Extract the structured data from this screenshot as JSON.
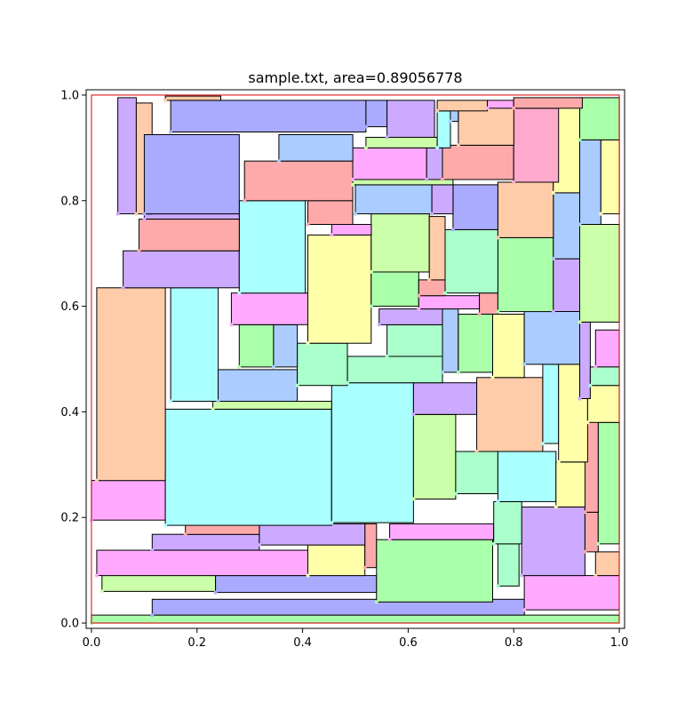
{
  "chart_data": {
    "type": "rectangle-packing",
    "title": "sample.txt, area=0.89056778",
    "xlabel": "",
    "ylabel": "",
    "xlim": [
      -0.01,
      1.01
    ],
    "ylim": [
      -0.01,
      1.01
    ],
    "xticks": [
      0.0,
      0.2,
      0.4,
      0.6,
      0.8,
      1.0
    ],
    "yticks": [
      0.0,
      0.2,
      0.4,
      0.6,
      0.8,
      1.0
    ],
    "xtick_labels": [
      "0.0",
      "0.2",
      "0.4",
      "0.6",
      "0.8",
      "1.0"
    ],
    "ytick_labels": [
      "0.0",
      "0.2",
      "0.4",
      "0.6",
      "0.8",
      "1.0"
    ],
    "container": {
      "x0": 0.0,
      "y0": 0.0,
      "x1": 1.0,
      "y1": 1.0,
      "color": "#dd0000"
    },
    "rectangles": [
      {
        "x0": 0.0,
        "y0": 0.0,
        "x1": 1.0,
        "y1": 0.015,
        "color": "#aaffaa"
      },
      {
        "x0": 0.115,
        "y0": 0.015,
        "x1": 0.82,
        "y1": 0.045,
        "color": "#aaaaff"
      },
      {
        "x0": 0.82,
        "y0": 0.025,
        "x1": 1.0,
        "y1": 0.09,
        "color": "#ffaaff"
      },
      {
        "x0": 0.02,
        "y0": 0.06,
        "x1": 0.235,
        "y1": 0.09,
        "color": "#ccffaa"
      },
      {
        "x0": 0.235,
        "y0": 0.058,
        "x1": 0.54,
        "y1": 0.09,
        "color": "#aaaaff"
      },
      {
        "x0": 0.01,
        "y0": 0.09,
        "x1": 0.41,
        "y1": 0.138,
        "color": "#ffaaff"
      },
      {
        "x0": 0.41,
        "y0": 0.09,
        "x1": 0.518,
        "y1": 0.148,
        "color": "#ffffaa"
      },
      {
        "x0": 0.518,
        "y0": 0.105,
        "x1": 0.54,
        "y1": 0.188,
        "color": "#ffaaaa"
      },
      {
        "x0": 0.54,
        "y0": 0.04,
        "x1": 0.76,
        "y1": 0.158,
        "color": "#aaffaa"
      },
      {
        "x0": 0.77,
        "y0": 0.07,
        "x1": 0.81,
        "y1": 0.15,
        "color": "#aaffcc"
      },
      {
        "x0": 0.815,
        "y0": 0.09,
        "x1": 0.935,
        "y1": 0.22,
        "color": "#ccaaff"
      },
      {
        "x0": 0.955,
        "y0": 0.09,
        "x1": 1.0,
        "y1": 0.135,
        "color": "#ffccaa"
      },
      {
        "x0": 0.115,
        "y0": 0.138,
        "x1": 0.318,
        "y1": 0.168,
        "color": "#ccaaff"
      },
      {
        "x0": 0.318,
        "y0": 0.148,
        "x1": 0.518,
        "y1": 0.188,
        "color": "#ccaaff"
      },
      {
        "x0": 0.178,
        "y0": 0.168,
        "x1": 0.318,
        "y1": 0.188,
        "color": "#ffaaaa"
      },
      {
        "x0": 0.565,
        "y0": 0.158,
        "x1": 0.762,
        "y1": 0.188,
        "color": "#ffaaff"
      },
      {
        "x0": 0.762,
        "y0": 0.15,
        "x1": 0.815,
        "y1": 0.23,
        "color": "#aaffcc"
      },
      {
        "x0": 0.935,
        "y0": 0.135,
        "x1": 0.96,
        "y1": 0.21,
        "color": "#ffaaaa"
      },
      {
        "x0": 0.96,
        "y0": 0.15,
        "x1": 1.0,
        "y1": 0.38,
        "color": "#aaffaa"
      },
      {
        "x0": 0.0,
        "y0": 0.195,
        "x1": 0.14,
        "y1": 0.27,
        "color": "#ffaaff"
      },
      {
        "x0": 0.14,
        "y0": 0.185,
        "x1": 0.455,
        "y1": 0.405,
        "color": "#aaffff"
      },
      {
        "x0": 0.455,
        "y0": 0.19,
        "x1": 0.61,
        "y1": 0.455,
        "color": "#aaffff"
      },
      {
        "x0": 0.61,
        "y0": 0.235,
        "x1": 0.69,
        "y1": 0.395,
        "color": "#ccffaa"
      },
      {
        "x0": 0.69,
        "y0": 0.245,
        "x1": 0.77,
        "y1": 0.325,
        "color": "#aaffcc"
      },
      {
        "x0": 0.77,
        "y0": 0.23,
        "x1": 0.88,
        "y1": 0.325,
        "color": "#aaffff"
      },
      {
        "x0": 0.88,
        "y0": 0.22,
        "x1": 0.935,
        "y1": 0.305,
        "color": "#ffffaa"
      },
      {
        "x0": 0.935,
        "y0": 0.21,
        "x1": 0.96,
        "y1": 0.385,
        "color": "#ffaaaa"
      },
      {
        "x0": 0.01,
        "y0": 0.27,
        "x1": 0.14,
        "y1": 0.635,
        "color": "#ffccaa"
      },
      {
        "x0": 0.61,
        "y0": 0.395,
        "x1": 0.73,
        "y1": 0.455,
        "color": "#ccaaff"
      },
      {
        "x0": 0.73,
        "y0": 0.325,
        "x1": 0.855,
        "y1": 0.465,
        "color": "#ffccaa"
      },
      {
        "x0": 0.855,
        "y0": 0.34,
        "x1": 0.885,
        "y1": 0.49,
        "color": "#aaffff"
      },
      {
        "x0": 0.885,
        "y0": 0.305,
        "x1": 0.94,
        "y1": 0.49,
        "color": "#ffffaa"
      },
      {
        "x0": 0.94,
        "y0": 0.38,
        "x1": 1.0,
        "y1": 0.45,
        "color": "#ffffaa"
      },
      {
        "x0": 0.23,
        "y0": 0.405,
        "x1": 0.455,
        "y1": 0.42,
        "color": "#ccffaa"
      },
      {
        "x0": 0.15,
        "y0": 0.42,
        "x1": 0.24,
        "y1": 0.635,
        "color": "#aaffff"
      },
      {
        "x0": 0.24,
        "y0": 0.42,
        "x1": 0.39,
        "y1": 0.48,
        "color": "#aaccff"
      },
      {
        "x0": 0.39,
        "y0": 0.45,
        "x1": 0.485,
        "y1": 0.53,
        "color": "#aaffcc"
      },
      {
        "x0": 0.485,
        "y0": 0.455,
        "x1": 0.665,
        "y1": 0.505,
        "color": "#aaffcc"
      },
      {
        "x0": 0.665,
        "y0": 0.475,
        "x1": 0.695,
        "y1": 0.595,
        "color": "#aaccff"
      },
      {
        "x0": 0.695,
        "y0": 0.475,
        "x1": 0.76,
        "y1": 0.585,
        "color": "#aaffaa"
      },
      {
        "x0": 0.76,
        "y0": 0.465,
        "x1": 0.82,
        "y1": 0.585,
        "color": "#ffffaa"
      },
      {
        "x0": 0.82,
        "y0": 0.49,
        "x1": 0.925,
        "y1": 0.59,
        "color": "#aaccff"
      },
      {
        "x0": 0.925,
        "y0": 0.425,
        "x1": 0.945,
        "y1": 0.57,
        "color": "#ccaaff"
      },
      {
        "x0": 0.955,
        "y0": 0.485,
        "x1": 1.0,
        "y1": 0.555,
        "color": "#ffaaff"
      },
      {
        "x0": 0.945,
        "y0": 0.45,
        "x1": 1.0,
        "y1": 0.485,
        "color": "#aaffcc"
      },
      {
        "x0": 0.28,
        "y0": 0.485,
        "x1": 0.345,
        "y1": 0.565,
        "color": "#aaffaa"
      },
      {
        "x0": 0.345,
        "y0": 0.485,
        "x1": 0.39,
        "y1": 0.565,
        "color": "#aaccff"
      },
      {
        "x0": 0.56,
        "y0": 0.505,
        "x1": 0.665,
        "y1": 0.565,
        "color": "#aaffcc"
      },
      {
        "x0": 0.265,
        "y0": 0.565,
        "x1": 0.41,
        "y1": 0.625,
        "color": "#ffaaff"
      },
      {
        "x0": 0.41,
        "y0": 0.53,
        "x1": 0.53,
        "y1": 0.735,
        "color": "#ffffaa"
      },
      {
        "x0": 0.545,
        "y0": 0.565,
        "x1": 0.665,
        "y1": 0.595,
        "color": "#ccaaff"
      },
      {
        "x0": 0.53,
        "y0": 0.6,
        "x1": 0.62,
        "y1": 0.665,
        "color": "#aaffaa"
      },
      {
        "x0": 0.62,
        "y0": 0.595,
        "x1": 0.735,
        "y1": 0.62,
        "color": "#ffaaff"
      },
      {
        "x0": 0.735,
        "y0": 0.585,
        "x1": 0.77,
        "y1": 0.625,
        "color": "#ffaaaa"
      },
      {
        "x0": 0.77,
        "y0": 0.59,
        "x1": 0.875,
        "y1": 0.73,
        "color": "#aaffaa"
      },
      {
        "x0": 0.875,
        "y0": 0.59,
        "x1": 0.925,
        "y1": 0.69,
        "color": "#ccaaff"
      },
      {
        "x0": 0.925,
        "y0": 0.57,
        "x1": 1.0,
        "y1": 0.755,
        "color": "#ccffaa"
      },
      {
        "x0": 0.06,
        "y0": 0.635,
        "x1": 0.28,
        "y1": 0.705,
        "color": "#ccaaff"
      },
      {
        "x0": 0.28,
        "y0": 0.625,
        "x1": 0.405,
        "y1": 0.8,
        "color": "#aaffff"
      },
      {
        "x0": 0.62,
        "y0": 0.62,
        "x1": 0.67,
        "y1": 0.65,
        "color": "#ffaaaa"
      },
      {
        "x0": 0.67,
        "y0": 0.625,
        "x1": 0.77,
        "y1": 0.745,
        "color": "#aaffcc"
      },
      {
        "x0": 0.53,
        "y0": 0.665,
        "x1": 0.64,
        "y1": 0.775,
        "color": "#ccffaa"
      },
      {
        "x0": 0.64,
        "y0": 0.65,
        "x1": 0.67,
        "y1": 0.77,
        "color": "#ffccaa"
      },
      {
        "x0": 0.09,
        "y0": 0.705,
        "x1": 0.28,
        "y1": 0.765,
        "color": "#ffaaaa"
      },
      {
        "x0": 0.455,
        "y0": 0.735,
        "x1": 0.53,
        "y1": 0.755,
        "color": "#ffaaff"
      },
      {
        "x0": 0.875,
        "y0": 0.69,
        "x1": 0.925,
        "y1": 0.815,
        "color": "#aaccff"
      },
      {
        "x0": 0.77,
        "y0": 0.73,
        "x1": 0.875,
        "y1": 0.835,
        "color": "#ffccaa"
      },
      {
        "x0": 0.41,
        "y0": 0.755,
        "x1": 0.495,
        "y1": 0.8,
        "color": "#ffaaaa"
      },
      {
        "x0": 0.685,
        "y0": 0.745,
        "x1": 0.77,
        "y1": 0.83,
        "color": "#aaaaff"
      },
      {
        "x0": 0.1,
        "y0": 0.765,
        "x1": 0.28,
        "y1": 0.775,
        "color": "#ccaaff"
      },
      {
        "x0": 0.05,
        "y0": 0.775,
        "x1": 0.085,
        "y1": 0.995,
        "color": "#ccaaff"
      },
      {
        "x0": 0.085,
        "y0": 0.775,
        "x1": 0.115,
        "y1": 0.985,
        "color": "#ffccaa"
      },
      {
        "x0": 0.5,
        "y0": 0.775,
        "x1": 0.645,
        "y1": 0.83,
        "color": "#aaccff"
      },
      {
        "x0": 0.645,
        "y0": 0.775,
        "x1": 0.685,
        "y1": 0.83,
        "color": "#ccaaff"
      },
      {
        "x0": 0.1,
        "y0": 0.775,
        "x1": 0.28,
        "y1": 0.925,
        "color": "#aaaaff"
      },
      {
        "x0": 0.29,
        "y0": 0.8,
        "x1": 0.495,
        "y1": 0.875,
        "color": "#ffaaaa"
      },
      {
        "x0": 0.495,
        "y0": 0.83,
        "x1": 0.685,
        "y1": 0.84,
        "color": "#ccffaa"
      },
      {
        "x0": 0.875,
        "y0": 0.815,
        "x1": 0.925,
        "y1": 0.985,
        "color": "#ffffaa"
      },
      {
        "x0": 0.925,
        "y0": 0.755,
        "x1": 0.965,
        "y1": 0.915,
        "color": "#aaccff"
      },
      {
        "x0": 0.965,
        "y0": 0.775,
        "x1": 1.0,
        "y1": 0.915,
        "color": "#ffffaa"
      },
      {
        "x0": 0.495,
        "y0": 0.84,
        "x1": 0.635,
        "y1": 0.9,
        "color": "#ffaaff"
      },
      {
        "x0": 0.635,
        "y0": 0.84,
        "x1": 0.665,
        "y1": 0.9,
        "color": "#ccaaff"
      },
      {
        "x0": 0.665,
        "y0": 0.84,
        "x1": 0.8,
        "y1": 0.905,
        "color": "#ffaaaa"
      },
      {
        "x0": 0.8,
        "y0": 0.835,
        "x1": 0.885,
        "y1": 0.975,
        "color": "#ffaacc"
      },
      {
        "x0": 0.355,
        "y0": 0.875,
        "x1": 0.495,
        "y1": 0.925,
        "color": "#aaccff"
      },
      {
        "x0": 0.52,
        "y0": 0.9,
        "x1": 0.655,
        "y1": 0.92,
        "color": "#ccffaa"
      },
      {
        "x0": 0.655,
        "y0": 0.9,
        "x1": 0.68,
        "y1": 0.97,
        "color": "#aaffff"
      },
      {
        "x0": 0.695,
        "y0": 0.905,
        "x1": 0.8,
        "y1": 0.98,
        "color": "#ffccaa"
      },
      {
        "x0": 0.15,
        "y0": 0.93,
        "x1": 0.52,
        "y1": 0.99,
        "color": "#aaaaff"
      },
      {
        "x0": 0.52,
        "y0": 0.94,
        "x1": 0.56,
        "y1": 0.99,
        "color": "#aaaaff"
      },
      {
        "x0": 0.56,
        "y0": 0.92,
        "x1": 0.65,
        "y1": 0.99,
        "color": "#ccaaff"
      },
      {
        "x0": 0.68,
        "y0": 0.95,
        "x1": 0.695,
        "y1": 0.98,
        "color": "#aaccff"
      },
      {
        "x0": 0.925,
        "y0": 0.915,
        "x1": 1.0,
        "y1": 0.995,
        "color": "#aaffaa"
      },
      {
        "x0": 0.655,
        "y0": 0.97,
        "x1": 0.75,
        "y1": 0.99,
        "color": "#ffccaa"
      },
      {
        "x0": 0.75,
        "y0": 0.975,
        "x1": 0.8,
        "y1": 0.99,
        "color": "#ffaaff"
      },
      {
        "x0": 0.8,
        "y0": 0.975,
        "x1": 0.93,
        "y1": 0.995,
        "color": "#ffaaaa"
      },
      {
        "x0": 0.14,
        "y0": 0.99,
        "x1": 0.245,
        "y1": 0.998,
        "color": "#ffccaa"
      }
    ]
  }
}
